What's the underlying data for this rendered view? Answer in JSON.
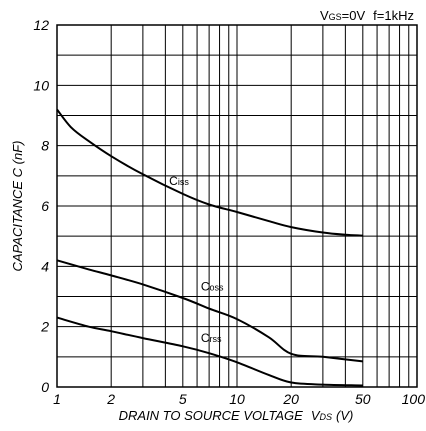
{
  "chart_data": {
    "type": "line",
    "condition": {
      "vgs_prefix": "V",
      "vgs_sub": "GS",
      "vgs_value": "=0V",
      "freq": "f=1kHz"
    },
    "xlabel": {
      "main": "DRAIN TO SOURCE VOLTAGE",
      "symbol": "V",
      "symbol_sub": "DS",
      "unit": "(V)"
    },
    "ylabel": "CAPACITANCE  C (nF)",
    "x_scale": "log",
    "xlim": [
      1,
      100
    ],
    "ylim": [
      0,
      12
    ],
    "x_ticks": [
      1,
      2,
      5,
      10,
      20,
      50,
      100
    ],
    "x_tick_labels": [
      "1",
      "2",
      "5",
      "10",
      "20",
      "50",
      "100"
    ],
    "y_ticks": [
      0,
      2,
      4,
      6,
      8,
      10,
      12
    ],
    "y_tick_labels": [
      "0",
      "2",
      "4",
      "6",
      "8",
      "10",
      "12"
    ],
    "grid": true,
    "series": [
      {
        "name": "Ciss",
        "label_main": "C",
        "label_sub": "iss",
        "label_at": {
          "x": 4.2,
          "y": 6.7
        },
        "x": [
          1,
          1.2,
          1.5,
          2,
          3,
          5,
          7,
          10,
          15,
          20,
          30,
          40,
          50
        ],
        "values": [
          9.2,
          8.6,
          8.15,
          7.65,
          7.05,
          6.4,
          6.05,
          5.8,
          5.5,
          5.3,
          5.12,
          5.05,
          5.02
        ]
      },
      {
        "name": "Coss",
        "label_main": "C",
        "label_sub": "oss",
        "label_at": {
          "x": 6.3,
          "y": 3.2
        },
        "x": [
          1,
          1.5,
          2,
          3,
          5,
          7,
          10,
          15,
          20,
          30,
          50
        ],
        "values": [
          4.2,
          3.9,
          3.7,
          3.4,
          2.95,
          2.6,
          2.25,
          1.65,
          1.1,
          1.0,
          0.85
        ]
      },
      {
        "name": "Crss",
        "label_main": "C",
        "label_sub": "rss",
        "label_at": {
          "x": 6.3,
          "y": 1.5
        },
        "x": [
          1,
          1.5,
          2,
          3,
          5,
          7,
          10,
          15,
          20,
          30,
          50
        ],
        "values": [
          2.3,
          2.0,
          1.85,
          1.62,
          1.35,
          1.12,
          0.82,
          0.4,
          0.15,
          0.08,
          0.05
        ]
      }
    ]
  }
}
